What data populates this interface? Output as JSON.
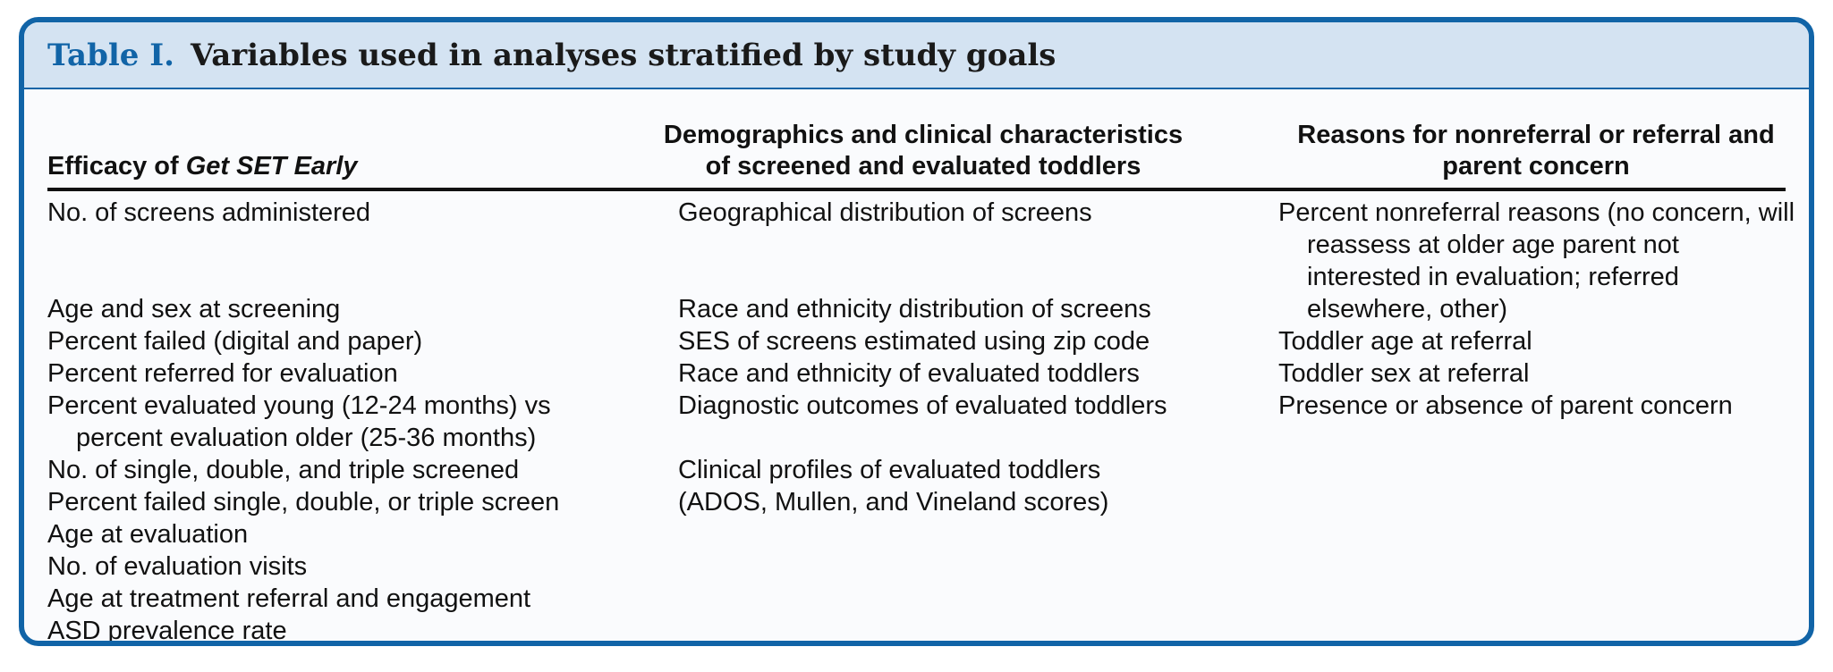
{
  "table": {
    "label": "Table I.",
    "title": "Variables used in analyses stratified by study goals",
    "headers": {
      "col1_prefix": "Efficacy of ",
      "col1_italic": "Get SET Early",
      "col2": "Demographics and clinical characteristics of screened and evaluated toddlers",
      "col3": "Reasons for nonreferral or referral and parent concern"
    },
    "col1": [
      "No. of screens administered",
      "Age and sex at screening",
      "Percent failed (digital and paper)",
      "Percent referred for evaluation",
      "Percent evaluated young (12-24 months) vs percent evaluation older (25-36 months)",
      "No. of single, double, and triple screened",
      "Percent failed single, double, or triple screen",
      "Age at evaluation",
      "No. of evaluation visits",
      "Age at treatment referral and engagement",
      "ASD prevalence rate"
    ],
    "col2": [
      "Geographical distribution of screens",
      "Race and ethnicity distribution of screens",
      "SES of screens estimated using zip code",
      "Race and ethnicity of evaluated toddlers",
      "Diagnostic outcomes of evaluated toddlers",
      "Clinical profiles of evaluated toddlers",
      "(ADOS, Mullen, and Vineland scores)"
    ],
    "col3": [
      "Percent nonreferral reasons (no concern, will reassess at older age parent not interested in evaluation; referred elsewhere, other)",
      "Toddler age at referral",
      "Toddler sex at referral",
      "Presence or absence of parent concern"
    ]
  }
}
